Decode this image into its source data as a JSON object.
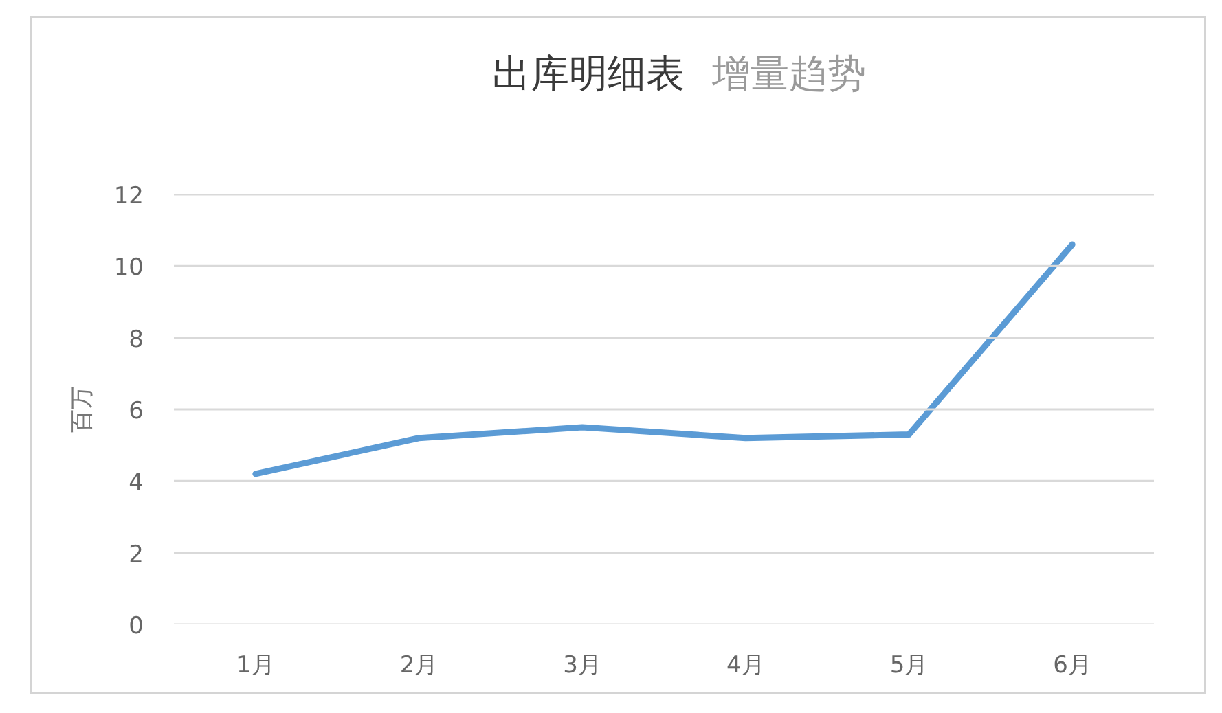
{
  "chart_data": {
    "type": "line",
    "title": "出库明细表",
    "subtitle": "增量趋势",
    "ylabel": "百万",
    "categories": [
      "1月",
      "2月",
      "3月",
      "4月",
      "5月",
      "6月"
    ],
    "series": [
      {
        "color": "#5b9bd5",
        "values": [
          4.2,
          5.2,
          5.5,
          5.2,
          5.3,
          10.6
        ]
      }
    ],
    "ylim": [
      0,
      12
    ],
    "yticks": [
      0,
      2,
      4,
      6,
      8,
      10,
      12
    ],
    "grid": "y",
    "marker": "none",
    "line_style": "solid"
  }
}
